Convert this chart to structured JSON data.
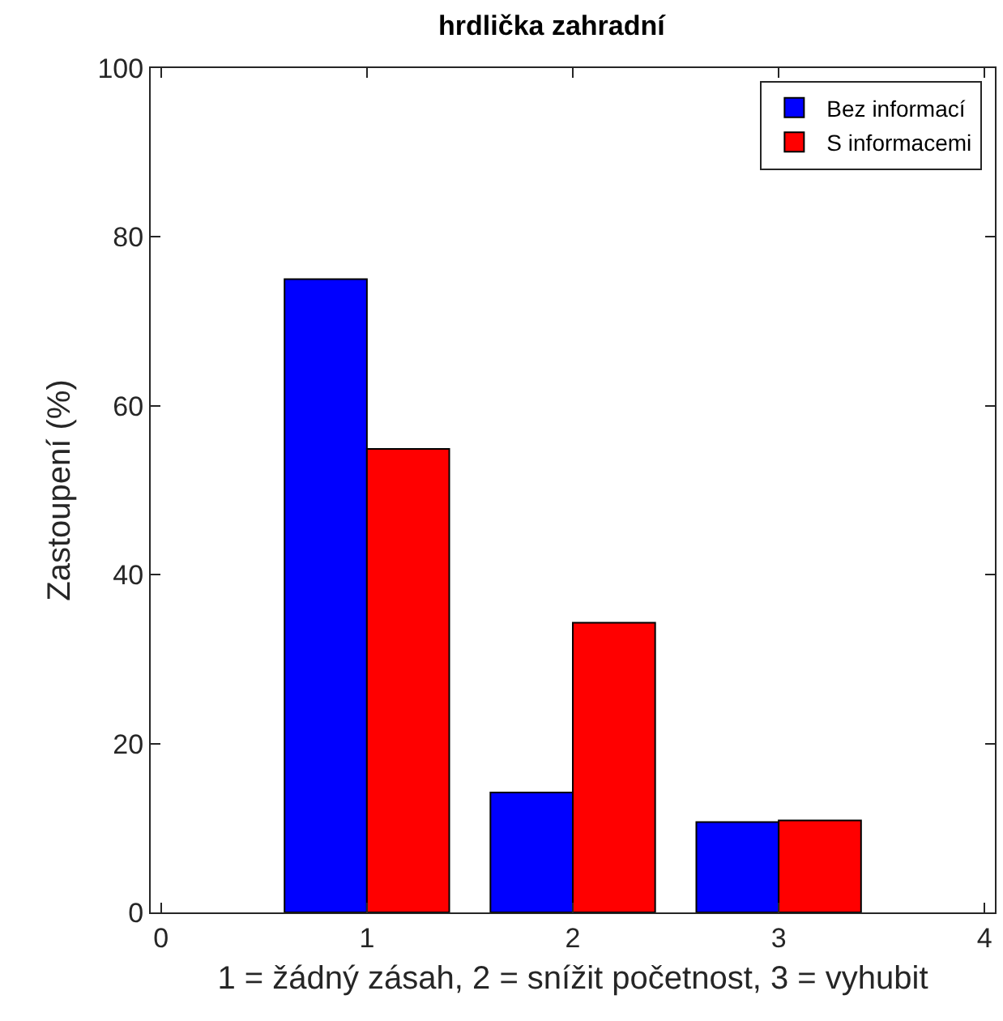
{
  "chart_data": {
    "type": "bar",
    "title": "hrdlička zahradní",
    "xlabel": "1 = žádný zásah, 2 = snížit početnost, 3 = vyhubit",
    "ylabel": "Zastoupení (%)",
    "x": [
      1,
      2,
      3
    ],
    "series": [
      {
        "name": "Bez informací",
        "color": "#0000ff",
        "values": [
          75.0,
          14.2,
          10.7
        ]
      },
      {
        "name": "S informacemi",
        "color": "#ff0000",
        "values": [
          54.9,
          34.3,
          10.9
        ]
      }
    ],
    "xlim": [
      -0.05,
      4.05
    ],
    "xticks": [
      0,
      1,
      2,
      3,
      4
    ],
    "ylim": [
      0,
      100
    ],
    "yticks": [
      0,
      20,
      40,
      60,
      80,
      100
    ],
    "grid": false,
    "legend": "top right"
  }
}
